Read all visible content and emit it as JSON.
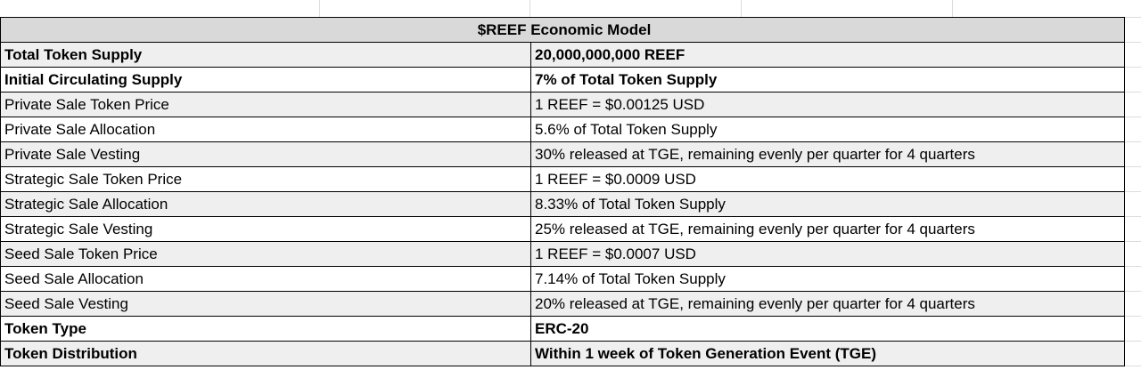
{
  "sheet": {
    "title": "$REEF Economic Model",
    "rows": [
      {
        "label": "Total Token Supply",
        "value": "20,000,000,000 REEF",
        "bold": true
      },
      {
        "label": "Initial Circulating Supply",
        "value": "7% of Total Token Supply",
        "bold": true
      },
      {
        "label": "Private Sale Token Price",
        "value": "1 REEF = $0.00125 USD",
        "bold": false
      },
      {
        "label": "Private Sale Allocation",
        "value": "5.6% of Total Token Supply",
        "bold": false
      },
      {
        "label": "Private Sale Vesting",
        "value": "30% released at TGE, remaining evenly per quarter for 4 quarters",
        "bold": false
      },
      {
        "label": "Strategic Sale Token Price",
        "value": "1 REEF = $0.0009 USD",
        "bold": false
      },
      {
        "label": "Strategic Sale Allocation",
        "value": "8.33% of Total Token Supply",
        "bold": false
      },
      {
        "label": "Strategic Sale Vesting",
        "value": "25% released at TGE, remaining evenly per quarter for 4 quarters",
        "bold": false
      },
      {
        "label": "Seed Sale Token Price",
        "value": "1 REEF = $0.0007 USD",
        "bold": false
      },
      {
        "label": "Seed Sale Allocation",
        "value": "7.14% of Total Token Supply",
        "bold": false
      },
      {
        "label": "Seed Sale Vesting",
        "value": "20% released at TGE, remaining evenly per quarter for 4 quarters",
        "bold": false
      },
      {
        "label": "Token Type",
        "value": "ERC-20",
        "bold": true
      },
      {
        "label": "Token Distribution",
        "value": "Within 1 week of Token Generation Event (TGE)",
        "bold": true
      }
    ]
  },
  "colors": {
    "title_fill": "#d9d9d9",
    "shaded_row_fill": "#efefef",
    "white_row_fill": "#ffffff",
    "border": "#000000"
  }
}
